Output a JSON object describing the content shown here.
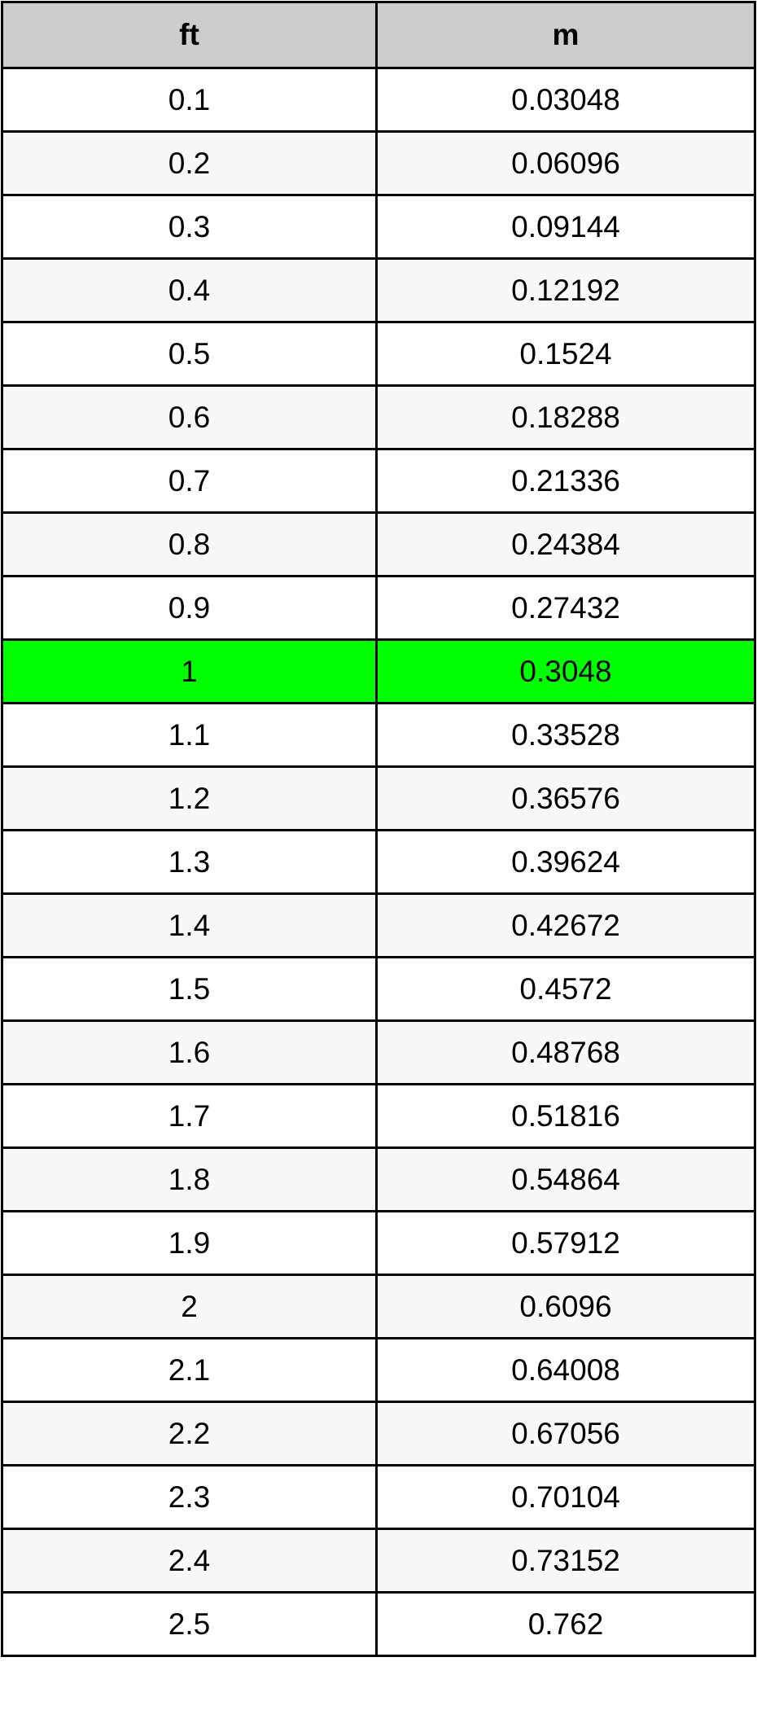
{
  "table": {
    "headers": [
      "ft",
      "m"
    ],
    "highlight_color": "#00ff00",
    "header_color": "#cccccc",
    "rows": [
      [
        "0.1",
        "0.03048"
      ],
      [
        "0.2",
        "0.06096"
      ],
      [
        "0.3",
        "0.09144"
      ],
      [
        "0.4",
        "0.12192"
      ],
      [
        "0.5",
        "0.1524"
      ],
      [
        "0.6",
        "0.18288"
      ],
      [
        "0.7",
        "0.21336"
      ],
      [
        "0.8",
        "0.24384"
      ],
      [
        "0.9",
        "0.27432"
      ],
      [
        "1",
        "0.3048"
      ],
      [
        "1.1",
        "0.33528"
      ],
      [
        "1.2",
        "0.36576"
      ],
      [
        "1.3",
        "0.39624"
      ],
      [
        "1.4",
        "0.42672"
      ],
      [
        "1.5",
        "0.4572"
      ],
      [
        "1.6",
        "0.48768"
      ],
      [
        "1.7",
        "0.51816"
      ],
      [
        "1.8",
        "0.54864"
      ],
      [
        "1.9",
        "0.57912"
      ],
      [
        "2",
        "0.6096"
      ],
      [
        "2.1",
        "0.64008"
      ],
      [
        "2.2",
        "0.67056"
      ],
      [
        "2.3",
        "0.70104"
      ],
      [
        "2.4",
        "0.73152"
      ],
      [
        "2.5",
        "0.762"
      ]
    ],
    "highlighted_row": 9
  }
}
